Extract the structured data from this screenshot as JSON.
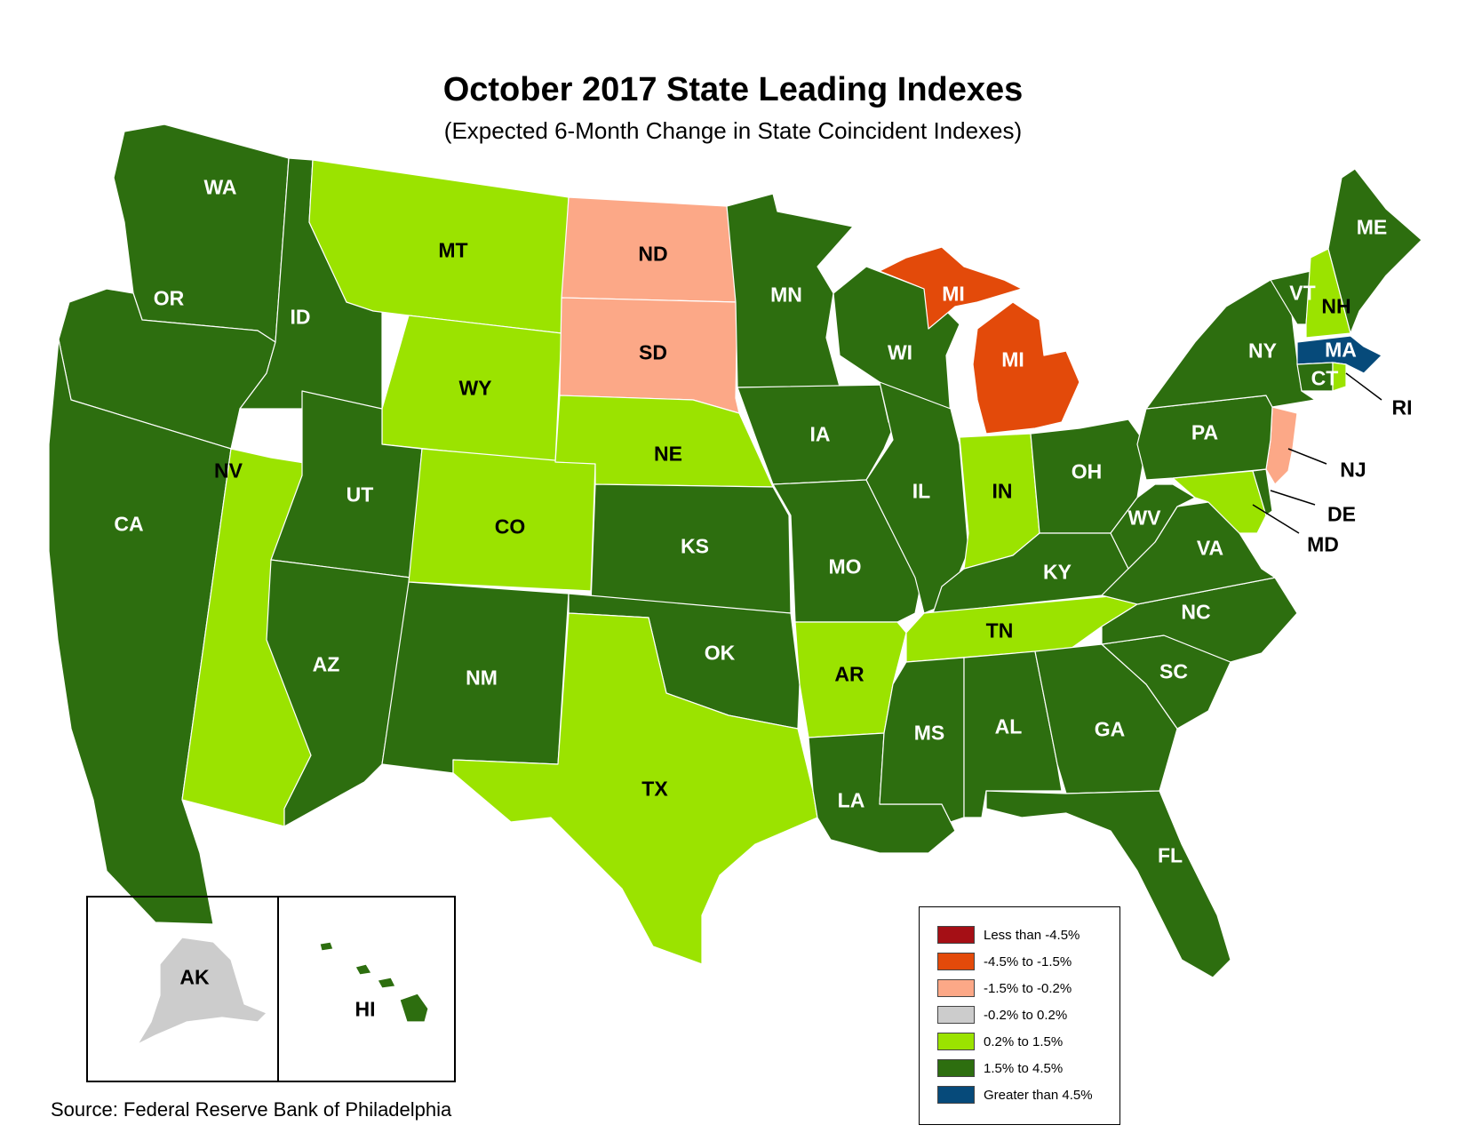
{
  "title": "October 2017 State Leading Indexes",
  "subtitle": "(Expected 6-Month Change in State Coincident Indexes)",
  "source": "Source: Federal Reserve Bank of Philadelphia",
  "colors": {
    "less_than_neg_4_5": "#a50f15",
    "neg_4_5_to_neg_1_5": "#e34a0a",
    "neg_1_5_to_neg_0_2": "#fca887",
    "neg_0_2_to_0_2": "#cccccc",
    "0_2_to_1_5": "#9be300",
    "1_5_to_4_5": "#2d6e0f",
    "greater_than_4_5": "#064a7a"
  },
  "legend": [
    {
      "label": "Less than -4.5%",
      "color": "#a50f15"
    },
    {
      "label": "-4.5% to -1.5%",
      "color": "#e34a0a"
    },
    {
      "label": "-1.5% to -0.2%",
      "color": "#fca887"
    },
    {
      "label": "-0.2% to 0.2%",
      "color": "#cccccc"
    },
    {
      "label": "0.2% to 1.5%",
      "color": "#9be300"
    },
    {
      "label": "1.5% to 4.5%",
      "color": "#2d6e0f"
    },
    {
      "label": "Greater than 4.5%",
      "color": "#064a7a"
    }
  ],
  "states": {
    "WA": {
      "label": "WA",
      "category": "1.5% to 4.5%"
    },
    "OR": {
      "label": "OR",
      "category": "1.5% to 4.5%"
    },
    "CA": {
      "label": "CA",
      "category": "1.5% to 4.5%"
    },
    "ID": {
      "label": "ID",
      "category": "1.5% to 4.5%"
    },
    "NV": {
      "label": "NV",
      "category": "0.2% to 1.5%"
    },
    "MT": {
      "label": "MT",
      "category": "0.2% to 1.5%"
    },
    "WY": {
      "label": "WY",
      "category": "0.2% to 1.5%"
    },
    "UT": {
      "label": "UT",
      "category": "1.5% to 4.5%"
    },
    "AZ": {
      "label": "AZ",
      "category": "1.5% to 4.5%"
    },
    "CO": {
      "label": "CO",
      "category": "0.2% to 1.5%"
    },
    "NM": {
      "label": "NM",
      "category": "1.5% to 4.5%"
    },
    "ND": {
      "label": "ND",
      "category": "-1.5% to -0.2%"
    },
    "SD": {
      "label": "SD",
      "category": "-1.5% to -0.2%"
    },
    "NE": {
      "label": "NE",
      "category": "0.2% to 1.5%"
    },
    "KS": {
      "label": "KS",
      "category": "1.5% to 4.5%"
    },
    "OK": {
      "label": "OK",
      "category": "1.5% to 4.5%"
    },
    "TX": {
      "label": "TX",
      "category": "0.2% to 1.5%"
    },
    "MN": {
      "label": "MN",
      "category": "1.5% to 4.5%"
    },
    "IA": {
      "label": "IA",
      "category": "1.5% to 4.5%"
    },
    "MO": {
      "label": "MO",
      "category": "1.5% to 4.5%"
    },
    "AR": {
      "label": "AR",
      "category": "0.2% to 1.5%"
    },
    "LA": {
      "label": "LA",
      "category": "1.5% to 4.5%"
    },
    "WI": {
      "label": "WI",
      "category": "1.5% to 4.5%"
    },
    "IL": {
      "label": "IL",
      "category": "1.5% to 4.5%"
    },
    "MI": {
      "label": "MI",
      "category": "-4.5% to -1.5%"
    },
    "IN": {
      "label": "IN",
      "category": "0.2% to 1.5%"
    },
    "OH": {
      "label": "OH",
      "category": "1.5% to 4.5%"
    },
    "KY": {
      "label": "KY",
      "category": "1.5% to 4.5%"
    },
    "TN": {
      "label": "TN",
      "category": "0.2% to 1.5%"
    },
    "MS": {
      "label": "MS",
      "category": "1.5% to 4.5%"
    },
    "AL": {
      "label": "AL",
      "category": "1.5% to 4.5%"
    },
    "GA": {
      "label": "GA",
      "category": "1.5% to 4.5%"
    },
    "FL": {
      "label": "FL",
      "category": "1.5% to 4.5%"
    },
    "SC": {
      "label": "SC",
      "category": "1.5% to 4.5%"
    },
    "NC": {
      "label": "NC",
      "category": "1.5% to 4.5%"
    },
    "VA": {
      "label": "VA",
      "category": "1.5% to 4.5%"
    },
    "WV": {
      "label": "WV",
      "category": "1.5% to 4.5%"
    },
    "MD": {
      "label": "MD",
      "category": "0.2% to 1.5%"
    },
    "DE": {
      "label": "DE",
      "category": "1.5% to 4.5%"
    },
    "NJ": {
      "label": "NJ",
      "category": "-1.5% to -0.2%"
    },
    "PA": {
      "label": "PA",
      "category": "1.5% to 4.5%"
    },
    "NY": {
      "label": "NY",
      "category": "1.5% to 4.5%"
    },
    "CT": {
      "label": "CT",
      "category": "1.5% to 4.5%"
    },
    "RI": {
      "label": "RI",
      "category": "0.2% to 1.5%"
    },
    "MA": {
      "label": "MA",
      "category": "Greater than 4.5%"
    },
    "VT": {
      "label": "VT",
      "category": "1.5% to 4.5%"
    },
    "NH": {
      "label": "NH",
      "category": "0.2% to 1.5%"
    },
    "ME": {
      "label": "ME",
      "category": "1.5% to 4.5%"
    },
    "AK": {
      "label": "AK",
      "category": "-0.2% to 0.2%"
    },
    "HI": {
      "label": "HI",
      "category": "1.5% to 4.5%"
    }
  }
}
